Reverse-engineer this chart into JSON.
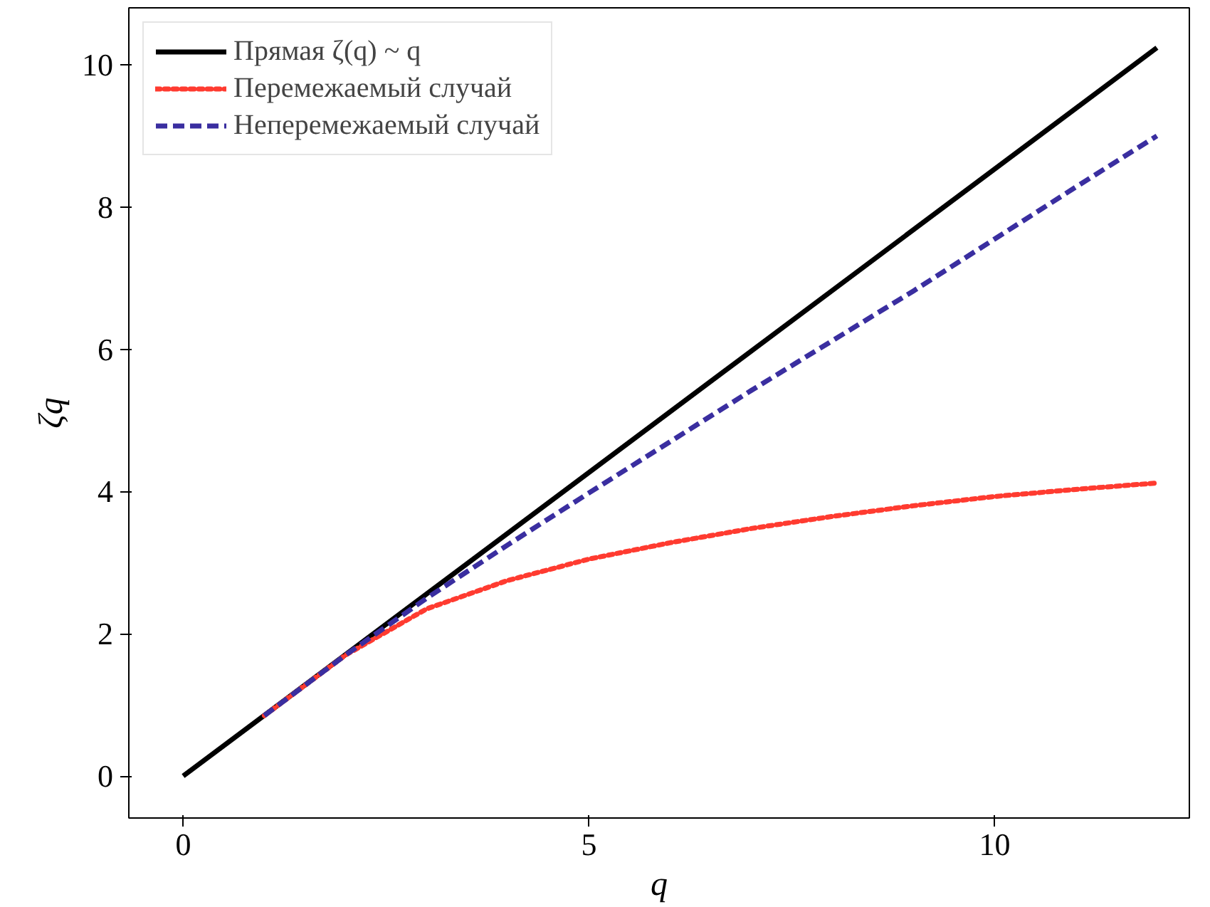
{
  "chart_data": {
    "type": "line",
    "xlabel": "q",
    "ylabel": "ζq",
    "x": [
      1,
      2,
      3,
      4,
      5,
      6,
      7,
      8,
      9,
      10,
      11,
      12
    ],
    "xlim": [
      -0.67,
      12.4
    ],
    "ylim": [
      -0.59,
      10.8
    ],
    "xticks": [
      0,
      5,
      10
    ],
    "yticks": [
      0,
      2,
      4,
      6,
      8,
      10
    ],
    "grid": false,
    "legend": "top left",
    "series": [
      {
        "name": "Прямая ζ(q) ~ q",
        "color": "#000000",
        "line_style": "solid",
        "x": [
          0,
          12
        ],
        "values": [
          0,
          10.24
        ]
      },
      {
        "name": "Перемежаемый случай",
        "color": "#ff3b30",
        "line_style": "dotted",
        "values": [
          0.85,
          1.7,
          2.35,
          2.75,
          3.05,
          3.28,
          3.48,
          3.65,
          3.8,
          3.93,
          4.03,
          4.12
        ]
      },
      {
        "name": "Неперемежаемый случай",
        "color": "#3a2ea0",
        "line_style": "dashed",
        "values": [
          0.85,
          1.7,
          2.5,
          3.25,
          3.98,
          4.7,
          5.42,
          6.12,
          6.82,
          7.55,
          8.28,
          9.0
        ]
      }
    ]
  }
}
